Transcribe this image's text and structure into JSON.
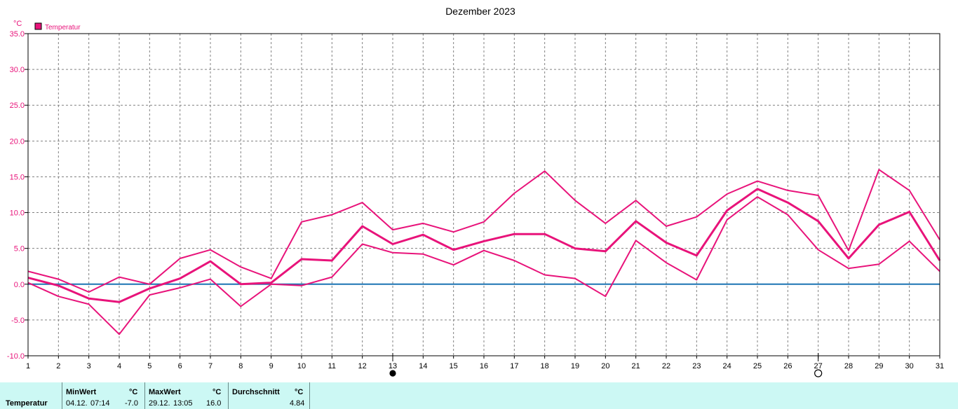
{
  "chart_data": {
    "type": "line",
    "title": "Dezember 2023",
    "unit": "°C",
    "legend": [
      "Temperatur"
    ],
    "legend_position": "top-left",
    "grid": true,
    "x": [
      1,
      2,
      3,
      4,
      5,
      6,
      7,
      8,
      9,
      10,
      11,
      12,
      13,
      14,
      15,
      16,
      17,
      18,
      19,
      20,
      21,
      22,
      23,
      24,
      25,
      26,
      27,
      28,
      29,
      30,
      31
    ],
    "xlim": [
      1,
      31
    ],
    "ylim": [
      -10,
      35
    ],
    "yticks": [
      "-10.0",
      "-5.0",
      "0.0",
      "5.0",
      "10.0",
      "15.0",
      "20.0",
      "25.0",
      "30.0",
      "35.0"
    ],
    "xticks": [
      "1",
      "2",
      "3",
      "4",
      "5",
      "6",
      "7",
      "8",
      "9",
      "10",
      "11",
      "12",
      "13",
      "14",
      "15",
      "16",
      "17",
      "18",
      "19",
      "20",
      "21",
      "22",
      "23",
      "24",
      "25",
      "26",
      "27",
      "28",
      "29",
      "30",
      "31"
    ],
    "series": [
      {
        "role": "max",
        "values": [
          1.8,
          0.7,
          -1.1,
          1.0,
          0.0,
          3.6,
          4.8,
          2.4,
          0.8,
          8.7,
          9.7,
          11.4,
          7.6,
          8.5,
          7.3,
          8.7,
          12.7,
          15.8,
          11.7,
          8.5,
          11.7,
          8.1,
          9.4,
          12.6,
          14.4,
          13.1,
          12.4,
          4.7,
          16.0,
          13.1,
          6.2
        ]
      },
      {
        "role": "avg",
        "values": [
          0.9,
          -0.2,
          -2.0,
          -2.5,
          -0.6,
          0.8,
          3.2,
          0.0,
          0.2,
          3.5,
          3.3,
          8.1,
          5.6,
          6.9,
          4.8,
          6.0,
          7.0,
          7.0,
          5.0,
          4.6,
          8.8,
          5.8,
          4.0,
          10.3,
          13.3,
          11.4,
          8.8,
          3.6,
          8.3,
          10.1,
          3.3
        ]
      },
      {
        "role": "min",
        "values": [
          0.2,
          -1.7,
          -2.8,
          -7.0,
          -1.5,
          -0.5,
          0.7,
          -3.1,
          0.0,
          -0.2,
          1.0,
          5.6,
          4.4,
          4.2,
          2.7,
          4.7,
          3.3,
          1.3,
          0.8,
          -1.7,
          6.1,
          3.0,
          0.6,
          9.0,
          12.2,
          9.7,
          4.8,
          2.2,
          2.8,
          6.0,
          1.8
        ]
      }
    ],
    "reference_line": 0,
    "colors": {
      "series": "#e8137a",
      "zero_line": "#1c74b4",
      "grid": "#808080",
      "frame": "#000000"
    },
    "moon_phases": [
      {
        "day": 13,
        "phase": "new-moon"
      },
      {
        "day": 27,
        "phase": "full-moon"
      }
    ]
  },
  "stats": {
    "row_label": "Temperatur",
    "min_header": "MinWert",
    "min_unit": "°C",
    "min_date": "04.12.",
    "min_time": "07:14",
    "min_value": "-7.0",
    "max_header": "MaxWert",
    "max_unit": "°C",
    "max_date": "29.12.",
    "max_time": "13:05",
    "max_value": "16.0",
    "avg_header": "Durchschnitt",
    "avg_unit": "°C",
    "avg_value": "4.84"
  },
  "colors": {
    "footer_bg": "#ccf8f4"
  }
}
